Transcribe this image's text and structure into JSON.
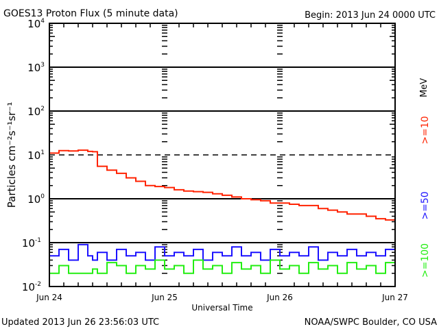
{
  "header": {
    "title": "GOES13 Proton Flux (5 minute data)",
    "begin": "Begin: 2013 Jun 24 0000 UTC"
  },
  "footer": {
    "updated": "Updated 2013 Jun 26 23:56:03 UTC",
    "credit": "NOAA/SWPC Boulder, CO USA"
  },
  "chart_data": {
    "type": "line",
    "title": "GOES13 Proton Flux (5 minute data)",
    "xlabel": "Universal Time",
    "ylabel": "Particles cm⁻²s⁻¹sr⁻¹",
    "yscale": "log",
    "ylim": [
      0.01,
      10000
    ],
    "xlim_hours": [
      0,
      72
    ],
    "x_tick_labels": [
      "Jun 24",
      "Jun 25",
      "Jun 26",
      "Jun 27"
    ],
    "y_tick_labels": [
      {
        "base": "10",
        "exp": "4"
      },
      {
        "base": "10",
        "exp": "3"
      },
      {
        "base": "10",
        "exp": "2"
      },
      {
        "base": "10",
        "exp": "1"
      },
      {
        "base": "10",
        "exp": "0"
      },
      {
        "base": "10",
        "exp": "-1"
      },
      {
        "base": "10",
        "exp": "-2"
      }
    ],
    "threshold_lines": [
      {
        "value": 10,
        "style": "dashed"
      }
    ],
    "grid": [
      1000,
      100,
      1,
      0.1
    ],
    "unit_label": "MeV",
    "x_hours": [
      0,
      2,
      4,
      6,
      8,
      9,
      10,
      12,
      14,
      16,
      18,
      20,
      22,
      24,
      26,
      28,
      30,
      32,
      34,
      36,
      38,
      40,
      42,
      44,
      46,
      48,
      50,
      52,
      54,
      56,
      58,
      60,
      62,
      64,
      66,
      68,
      70,
      72
    ],
    "series": [
      {
        "name": ">=10",
        "color": "#ff2200",
        "values": [
          11,
          12.5,
          12.3,
          12.8,
          12,
          11.8,
          5.5,
          4.5,
          3.8,
          3.0,
          2.5,
          2.0,
          1.9,
          1.8,
          1.6,
          1.5,
          1.45,
          1.4,
          1.3,
          1.2,
          1.1,
          1.0,
          0.95,
          0.9,
          0.8,
          0.8,
          0.75,
          0.7,
          0.7,
          0.6,
          0.55,
          0.5,
          0.45,
          0.45,
          0.4,
          0.35,
          0.33,
          0.5
        ]
      },
      {
        "name": ">=50",
        "color": "#1a10ff",
        "values": [
          0.05,
          0.07,
          0.04,
          0.09,
          0.05,
          0.04,
          0.06,
          0.04,
          0.07,
          0.05,
          0.06,
          0.04,
          0.08,
          0.05,
          0.06,
          0.05,
          0.07,
          0.04,
          0.06,
          0.05,
          0.08,
          0.05,
          0.06,
          0.04,
          0.07,
          0.05,
          0.06,
          0.05,
          0.08,
          0.04,
          0.06,
          0.05,
          0.07,
          0.05,
          0.06,
          0.05,
          0.07,
          0.05
        ]
      },
      {
        "name": ">=100",
        "color": "#22ee11",
        "values": [
          0.02,
          0.03,
          0.02,
          0.02,
          0.02,
          0.025,
          0.02,
          0.035,
          0.03,
          0.02,
          0.03,
          0.025,
          0.04,
          0.025,
          0.03,
          0.02,
          0.04,
          0.025,
          0.03,
          0.02,
          0.035,
          0.025,
          0.03,
          0.02,
          0.04,
          0.025,
          0.03,
          0.02,
          0.035,
          0.025,
          0.03,
          0.02,
          0.035,
          0.025,
          0.03,
          0.02,
          0.035,
          0.03
        ]
      }
    ]
  }
}
